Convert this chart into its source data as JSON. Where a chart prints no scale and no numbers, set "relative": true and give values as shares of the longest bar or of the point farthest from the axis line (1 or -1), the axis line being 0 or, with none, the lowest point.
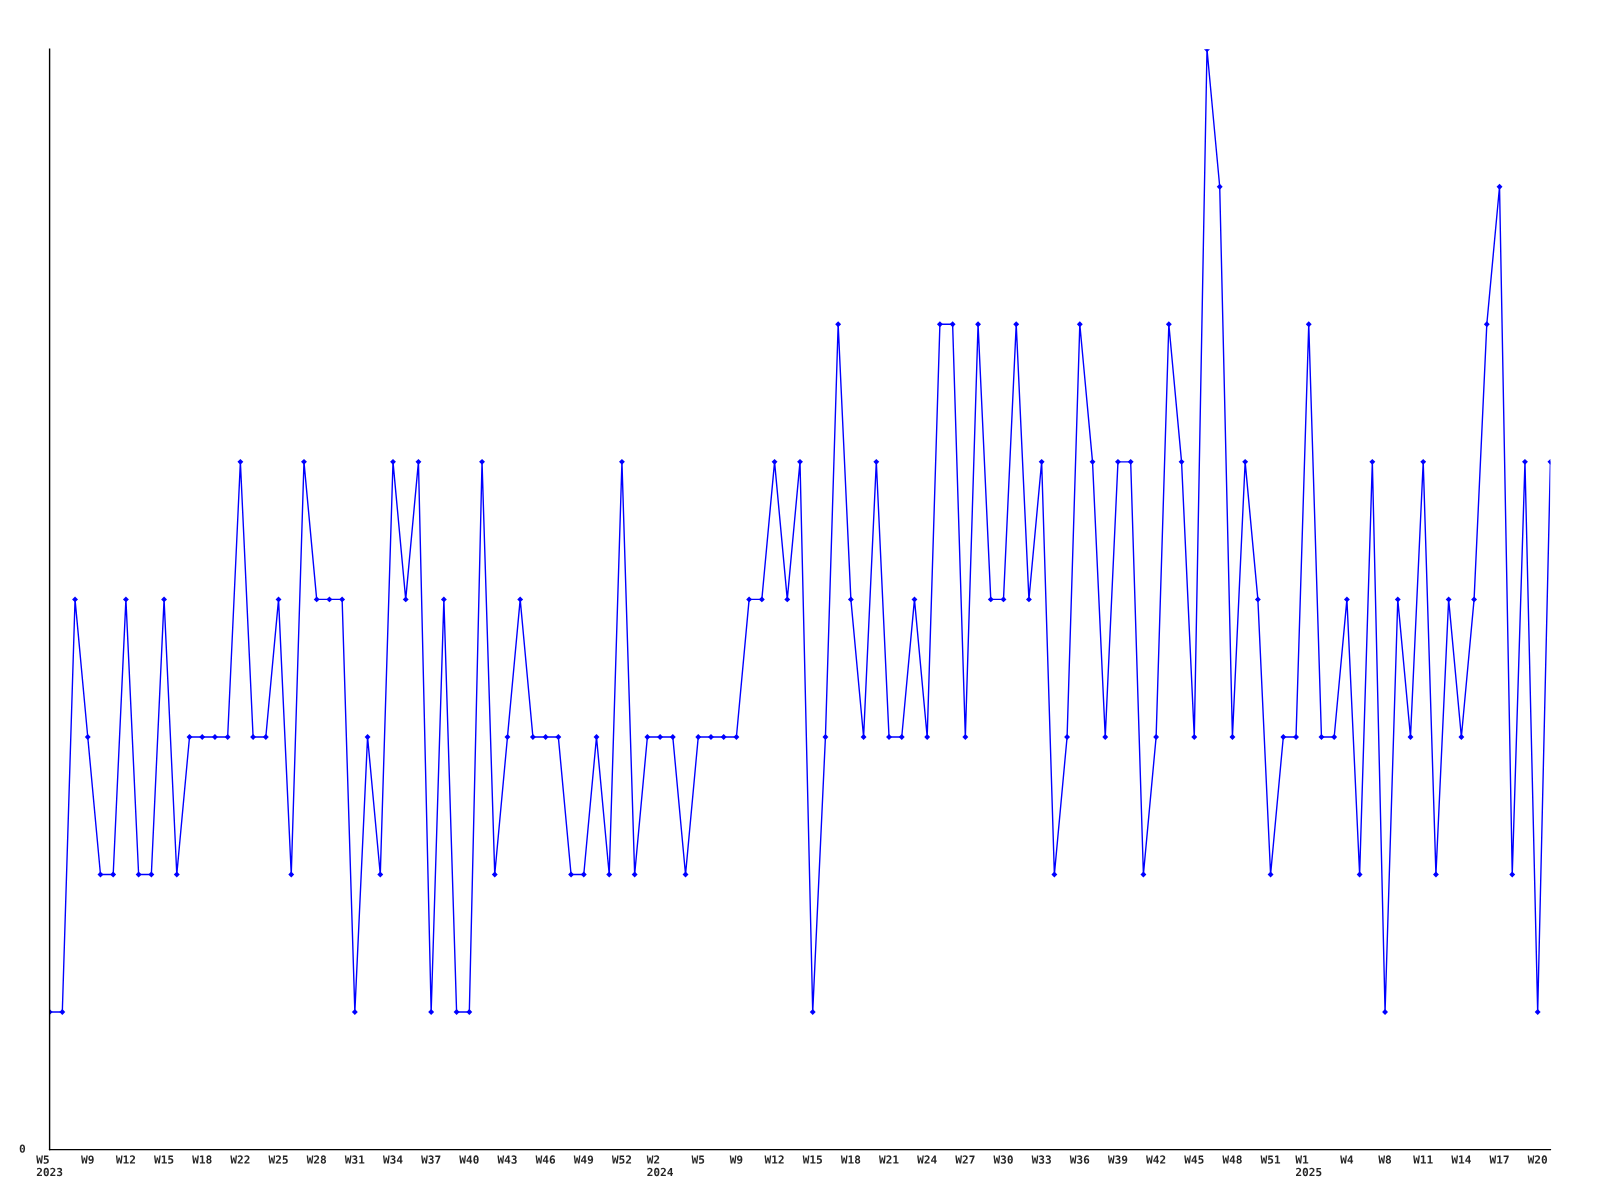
{
  "chart_data": {
    "type": "line",
    "relative": true,
    "annotations": [
      "0"
    ],
    "marker": "diamond",
    "line_style": "solid",
    "grid": false,
    "categories": [
      "W5\n2023",
      null,
      null,
      "W9",
      null,
      null,
      "W12",
      null,
      null,
      "W15",
      null,
      null,
      "W18",
      null,
      null,
      "W22",
      null,
      null,
      "W25",
      null,
      null,
      "W28",
      null,
      null,
      "W31",
      null,
      null,
      "W34",
      null,
      null,
      "W37",
      null,
      null,
      "W40",
      null,
      null,
      "W43",
      null,
      null,
      "W46",
      null,
      null,
      "W49",
      null,
      null,
      "W52",
      null,
      null,
      "W2\n2024",
      null,
      null,
      "W5",
      null,
      null,
      "W9",
      null,
      null,
      "W12",
      null,
      null,
      "W15",
      null,
      null,
      "W18",
      null,
      null,
      "W21",
      null,
      null,
      "W24",
      null,
      null,
      "W27",
      null,
      null,
      "W30",
      null,
      null,
      "W33",
      null,
      null,
      "W36",
      null,
      null,
      "W39",
      null,
      null,
      "W42",
      null,
      null,
      "W45",
      null,
      null,
      "W48",
      null,
      null,
      "W51",
      null,
      null,
      "W1\n2025",
      null,
      null,
      "W4",
      null,
      null,
      "W8",
      null,
      null,
      "W11",
      null,
      null,
      "W14",
      null,
      null,
      "W17",
      null,
      null,
      "W20",
      null
    ],
    "series": [
      {
        "color": "#0000ff",
        "values": [
          0.125,
          0.125,
          0.5,
          0.375,
          0.25,
          0.25,
          0.5,
          0.25,
          0.25,
          0.5,
          0.25,
          0.375,
          0.375,
          0.375,
          0.375,
          0.625,
          0.375,
          0.375,
          0.5,
          0.25,
          0.625,
          0.5,
          0.5,
          0.5,
          0.125,
          0.375,
          0.25,
          0.625,
          0.5,
          0.625,
          0.125,
          0.5,
          0.125,
          0.125,
          0.625,
          0.25,
          0.375,
          0.5,
          0.375,
          0.375,
          0.375,
          0.25,
          0.25,
          0.375,
          0.25,
          0.625,
          0.25,
          0.375,
          0.375,
          0.375,
          0.25,
          0.375,
          0.375,
          0.375,
          0.375,
          0.5,
          0.5,
          0.625,
          0.5,
          0.625,
          0.125,
          0.375,
          0.75,
          0.5,
          0.375,
          0.625,
          0.375,
          0.375,
          0.5,
          0.375,
          0.75,
          0.75,
          0.375,
          0.75,
          0.5,
          0.5,
          0.75,
          0.5,
          0.625,
          0.25,
          0.375,
          0.75,
          0.625,
          0.375,
          0.625,
          0.625,
          0.25,
          0.375,
          0.75,
          0.625,
          0.375,
          1,
          0.875,
          0.375,
          0.625,
          0.5,
          0.25,
          0.375,
          0.375,
          0.75,
          0.375,
          0.375,
          0.5,
          0.25,
          0.625,
          0.125,
          0.5,
          0.375,
          0.625,
          0.25,
          0.5,
          0.375,
          0.5,
          0.75,
          0.875,
          0.25,
          0.625,
          0.125,
          0.625
        ]
      }
    ]
  }
}
